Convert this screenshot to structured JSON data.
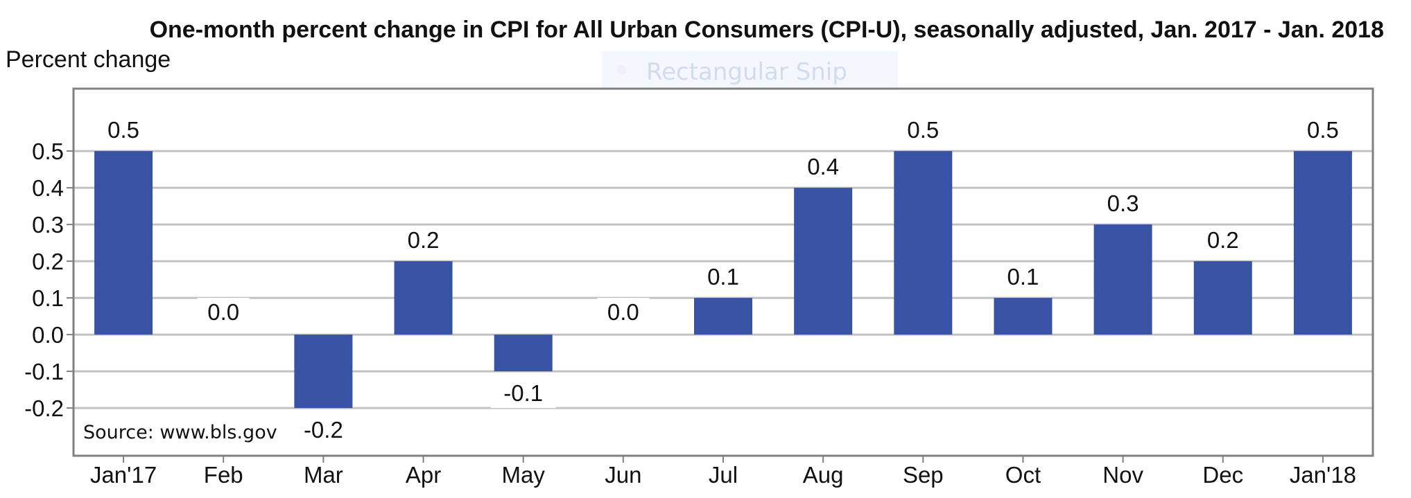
{
  "snip_overlay": {
    "label": "Rectangular Snip"
  },
  "chart_data": {
    "type": "bar",
    "title": "One-month percent change in CPI for All Urban Consumers (CPI-U), seasonally adjusted, Jan. 2017 - Jan. 2018",
    "ylabel": "Percent change",
    "xlabel": "",
    "categories": [
      "Jan'17",
      "Feb",
      "Mar",
      "Apr",
      "May",
      "Jun",
      "Jul",
      "Aug",
      "Sep",
      "Oct",
      "Nov",
      "Dec",
      "Jan'18"
    ],
    "values": [
      0.5,
      0.0,
      -0.2,
      0.2,
      -0.1,
      0.0,
      0.1,
      0.4,
      0.5,
      0.1,
      0.3,
      0.2,
      0.5
    ],
    "data_labels": [
      "0.5",
      "0.0",
      "-0.2",
      "0.2",
      "-0.1",
      "0.0",
      "0.1",
      "0.4",
      "0.5",
      "0.1",
      "0.3",
      "0.2",
      "0.5"
    ],
    "yticks": [
      0.5,
      0.4,
      0.3,
      0.2,
      0.1,
      0.0,
      -0.1,
      -0.2
    ],
    "ytick_labels": [
      "0.5",
      "0.4",
      "0.3",
      "0.2",
      "0.1",
      "0.0",
      "-0.1",
      "-0.2"
    ],
    "ylim": [
      -0.33,
      0.67
    ],
    "grid": true,
    "bar_color": "#3953a4",
    "annotation": "Source: www.bls.gov"
  }
}
